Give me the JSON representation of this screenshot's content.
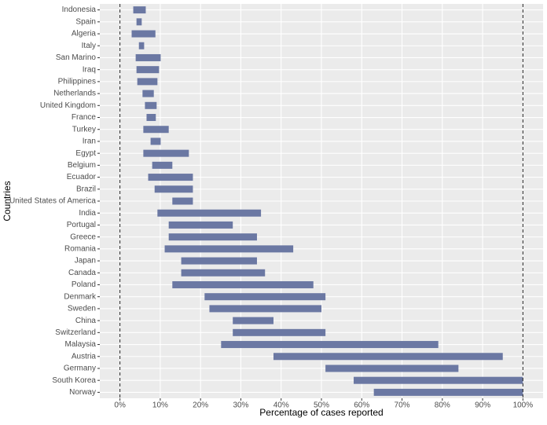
{
  "chart_data": {
    "type": "range_bar",
    "x_label": "Percentage of cases reported",
    "y_label": "Countries",
    "categories": [
      "Indonesia",
      "Spain",
      "Algeria",
      "Italy",
      "San Marino",
      "Iraq",
      "Philippines",
      "Netherlands",
      "United Kingdom",
      "France",
      "Turkey",
      "Iran",
      "Egypt",
      "Belgium",
      "Ecuador",
      "Brazil",
      "United States of America",
      "India",
      "Portugal",
      "Greece",
      "Romania",
      "Japan",
      "Canada",
      "Poland",
      "Denmark",
      "Sweden",
      "China",
      "Switzerland",
      "Malaysia",
      "Austria",
      "Germany",
      "South Korea",
      "Norway"
    ],
    "low": [
      3.3,
      4.1,
      2.9,
      4.7,
      3.9,
      4.1,
      4.3,
      5.6,
      6.2,
      6.6,
      5.8,
      7.6,
      5.8,
      8.0,
      7.0,
      8.6,
      13.0,
      9.3,
      12.1,
      12.1,
      11.1,
      15.2,
      15.2,
      13.0,
      21.0,
      22.2,
      28.0,
      28.0,
      25.1,
      38.1,
      51.0,
      58.0,
      63.0
    ],
    "high": [
      6.4,
      5.4,
      8.8,
      6.0,
      10.1,
      9.7,
      9.3,
      8.4,
      9.1,
      8.9,
      12.1,
      10.1,
      17.1,
      13.0,
      18.1,
      18.1,
      18.1,
      35.0,
      28.0,
      34.0,
      43.0,
      34.0,
      36.0,
      48.0,
      51.0,
      50.0,
      38.1,
      51.0,
      79.0,
      95.0,
      84.0,
      100.0,
      100.0
    ],
    "color": "#6b78a3",
    "xlim": [
      -5,
      105
    ],
    "xticks": [
      {
        "value": 0,
        "label": "0%"
      },
      {
        "value": 10,
        "label": "10%"
      },
      {
        "value": 20,
        "label": "20%"
      },
      {
        "value": 30,
        "label": "30%"
      },
      {
        "value": 40,
        "label": "40%"
      },
      {
        "value": 50,
        "label": "50%"
      },
      {
        "value": 60,
        "label": "60%"
      },
      {
        "value": 70,
        "label": "70%"
      },
      {
        "value": 80,
        "label": "80%"
      },
      {
        "value": 90,
        "label": "90%"
      },
      {
        "value": 100,
        "label": "100%"
      }
    ],
    "vlines": [
      0,
      100
    ],
    "grid": true
  }
}
